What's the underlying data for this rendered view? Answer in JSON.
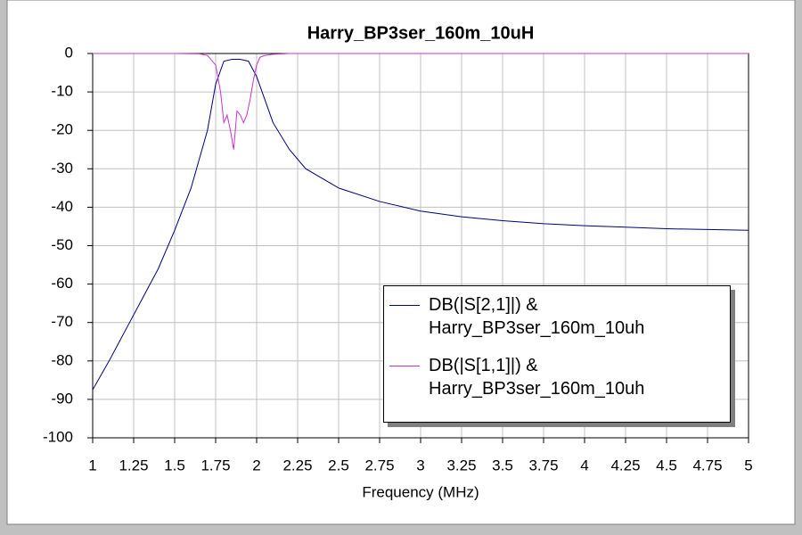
{
  "chart_data": {
    "type": "line",
    "title": "Harry_BP3ser_160m_10uH",
    "x_label": "Frequency (MHz)",
    "xlim": [
      1,
      5
    ],
    "xticks": [
      1,
      1.25,
      1.5,
      1.75,
      2,
      2.25,
      2.5,
      2.75,
      3,
      3.25,
      3.5,
      3.75,
      4,
      4.25,
      4.5,
      4.75,
      5
    ],
    "ylim": [
      -100,
      0
    ],
    "yticks": [
      0,
      -10,
      -20,
      -30,
      -40,
      -50,
      -60,
      -70,
      -80,
      -90,
      -100
    ],
    "grid": true,
    "legend": "lower-right",
    "series": [
      {
        "name": "DB(|S[2,1]|) & Harry_BP3ser_160m_10uh",
        "color": "#000080",
        "x": [
          1,
          1.1,
          1.2,
          1.3,
          1.4,
          1.5,
          1.6,
          1.7,
          1.75,
          1.8,
          1.85,
          1.9,
          1.95,
          2,
          2.05,
          2.1,
          2.2,
          2.3,
          2.5,
          2.75,
          3,
          3.25,
          3.5,
          3.75,
          4,
          4.25,
          4.5,
          4.75,
          5
        ],
        "values": [
          -87.5,
          -80,
          -72,
          -64,
          -56,
          -46,
          -35,
          -20,
          -8,
          -2,
          -1.5,
          -1.5,
          -2,
          -6,
          -12,
          -18,
          -25,
          -30,
          -35,
          -38.5,
          -41,
          -42.5,
          -43.5,
          -44.3,
          -44.8,
          -45.2,
          -45.6,
          -45.8,
          -46
        ]
      },
      {
        "name": "DB(|S[1,1]|) & Harry_BP3ser_160m_10uh",
        "color": "#cc33cc",
        "x": [
          1,
          1.5,
          1.65,
          1.7,
          1.75,
          1.78,
          1.8,
          1.82,
          1.84,
          1.86,
          1.88,
          1.9,
          1.92,
          1.94,
          1.96,
          1.98,
          2,
          2.02,
          2.05,
          2.1,
          2.2,
          2.5,
          5
        ],
        "values": [
          0,
          0,
          -0.1,
          -0.5,
          -3,
          -10,
          -18,
          -16,
          -20,
          -25,
          -15,
          -16,
          -18,
          -16,
          -12,
          -7,
          -3,
          -1,
          -0.5,
          -0.2,
          0,
          0,
          0
        ]
      }
    ]
  }
}
